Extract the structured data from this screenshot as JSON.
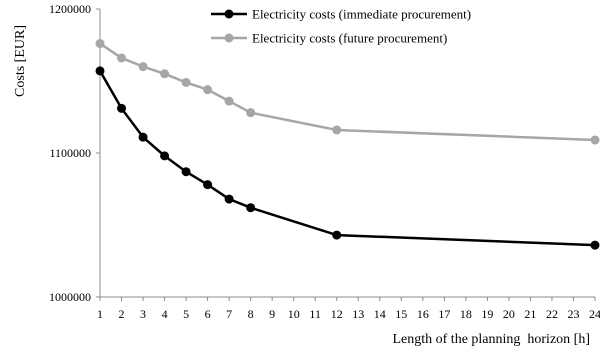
{
  "chart_data": {
    "type": "line",
    "x": [
      1,
      2,
      3,
      4,
      5,
      6,
      7,
      8,
      12,
      24
    ],
    "series": [
      {
        "name": "Electricity costs (immediate procurement)",
        "color": "#000000",
        "values": [
          1157000,
          1131000,
          1111000,
          1098000,
          1087000,
          1078000,
          1068000,
          1062000,
          1043000,
          1036000
        ]
      },
      {
        "name": "Electricity costs (future procurement)",
        "color": "#a6a6a6",
        "values": [
          1176000,
          1166000,
          1160000,
          1155000,
          1149000,
          1144000,
          1136000,
          1128000,
          1116000,
          1109000
        ]
      }
    ],
    "xlabel": "Length of the planning  horizon [h]",
    "ylabel": "Costs [EUR]",
    "xlim": [
      1,
      24
    ],
    "ylim": [
      1000000,
      1200000
    ],
    "xticks": [
      "1",
      "2",
      "3",
      "4",
      "5",
      "6",
      "7",
      "8",
      "9",
      "10",
      "11",
      "12",
      "13",
      "14",
      "15",
      "16",
      "17",
      "18",
      "19",
      "20",
      "21",
      "22",
      "23",
      "24"
    ],
    "yticks": [
      "1000000",
      "1100000",
      "1200000"
    ],
    "grid": false,
    "legend_position": "top-right"
  }
}
